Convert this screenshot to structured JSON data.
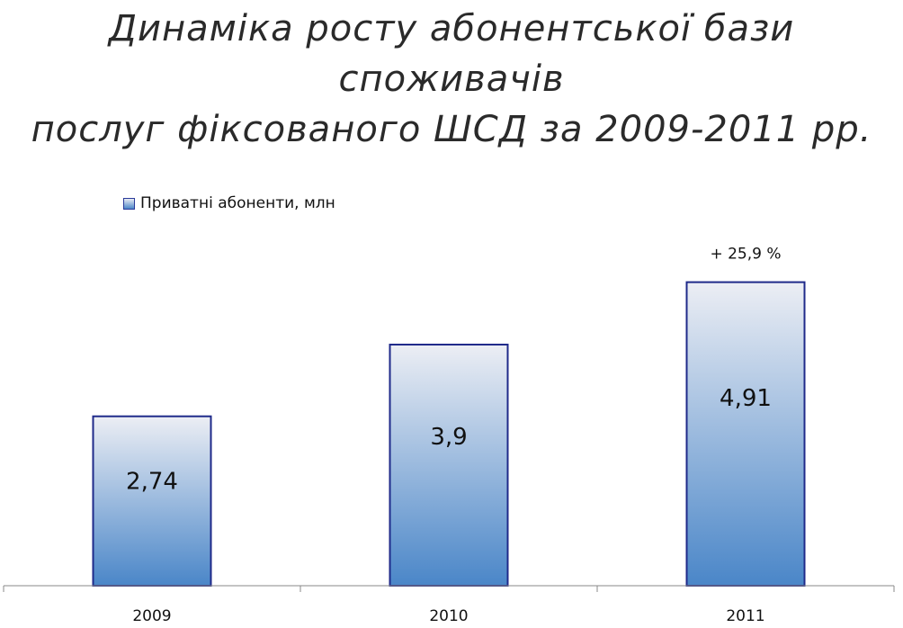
{
  "chart_data": {
    "type": "bar",
    "title_lines": [
      "Динаміка росту абонентської бази споживачів",
      "послуг фіксованого ШСД за 2009-2011 рр."
    ],
    "categories": [
      "2009",
      "2010",
      "2011"
    ],
    "series": [
      {
        "name": "Приватні абоненти, млн",
        "values": [
          2.74,
          3.9,
          4.91
        ],
        "labels": [
          "2,74",
          "3,9",
          "4,91"
        ]
      }
    ],
    "annotation": "+ 25,9 %",
    "ylim": [
      0,
      7
    ],
    "grid": false,
    "legend_position": "top-left",
    "bar_fill_top": "#eceef4",
    "bar_fill_bottom": "#4a86c8",
    "bar_border": "#1f2a8a"
  }
}
